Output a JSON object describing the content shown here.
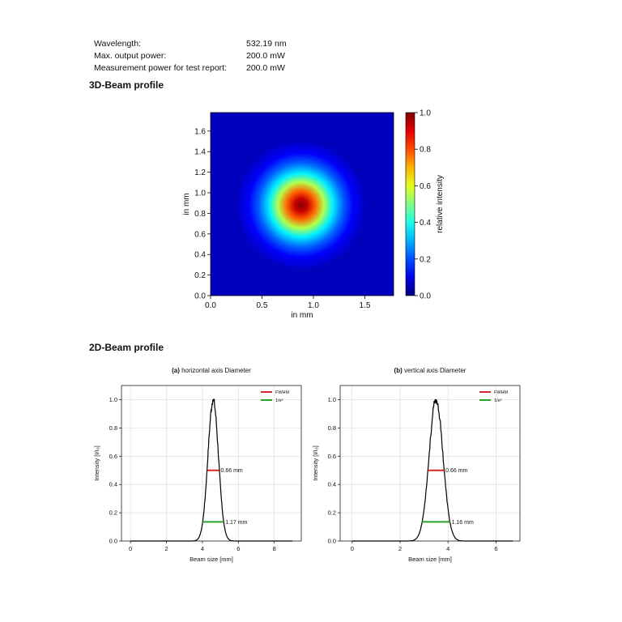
{
  "specs": [
    {
      "label": "Wavelength:",
      "value": "532.19 nm"
    },
    {
      "label": "Max. output power:",
      "value": "200.0 mW"
    },
    {
      "label": "Measurement power for test report:",
      "value": "200.0 mW"
    }
  ],
  "section_3d": {
    "title": "3D-Beam profile"
  },
  "section_2d": {
    "title": "2D-Beam profile"
  },
  "colors": {
    "line": "#000000",
    "fwhm": "#d62728",
    "e2": "#2ca02c",
    "grid": "#d9d9d9"
  },
  "chart_data": [
    {
      "type": "heatmap",
      "title": "",
      "xlabel": "in mm",
      "ylabel": "in mm",
      "xlim": [
        0,
        1.78
      ],
      "ylim": [
        0,
        1.78
      ],
      "xticks": [
        0.0,
        0.5,
        1.0,
        1.5
      ],
      "yticks": [
        0.0,
        0.2,
        0.4,
        0.6,
        0.8,
        1.0,
        1.2,
        1.4,
        1.6
      ],
      "colorbar": {
        "label": "relative intensity",
        "range": [
          0.0,
          1.0
        ],
        "ticks": [
          0.0,
          0.2,
          0.4,
          0.6,
          0.8,
          1.0
        ]
      },
      "beam_center": [
        0.88,
        0.88
      ],
      "colormap": "jet"
    },
    {
      "type": "line",
      "title_prefix": "(a)",
      "title": "horizontal axis Diameter",
      "xlabel": "Beam size [mm]",
      "ylabel": "Intensity [I/I₀]",
      "xlim": [
        -0.5,
        9.5
      ],
      "ylim": [
        0,
        1.1
      ],
      "xticks": [
        0,
        2,
        4,
        6,
        8
      ],
      "yticks": [
        0.0,
        0.2,
        0.4,
        0.6,
        0.8,
        1.0
      ],
      "legend": [
        "FWHM",
        "1/e²"
      ],
      "series": [
        {
          "peak_x": 4.6,
          "x_start": 0,
          "x_end": 9
        }
      ],
      "fwhm": {
        "value": 0.5,
        "width_mm": 0.66,
        "label": "0.66 mm"
      },
      "e2": {
        "value": 0.135,
        "width_mm": 1.17,
        "label": "1.17 mm"
      }
    },
    {
      "type": "line",
      "title_prefix": "(b)",
      "title": "vertical axis Diameter",
      "xlabel": "Beam size [mm]",
      "ylabel": "Intensity [I/I₀]",
      "xlim": [
        -0.5,
        7.0
      ],
      "ylim": [
        0,
        1.1
      ],
      "xticks": [
        0,
        2,
        4,
        6
      ],
      "yticks": [
        0.0,
        0.2,
        0.4,
        0.6,
        0.8,
        1.0
      ],
      "legend": [
        "FWHM",
        "1/e²"
      ],
      "series": [
        {
          "peak_x": 3.5,
          "x_start": 0,
          "x_end": 6.7
        }
      ],
      "fwhm": {
        "value": 0.5,
        "width_mm": 0.66,
        "label": "0.66 mm"
      },
      "e2": {
        "value": 0.135,
        "width_mm": 1.16,
        "label": "1.16 mm"
      }
    }
  ]
}
